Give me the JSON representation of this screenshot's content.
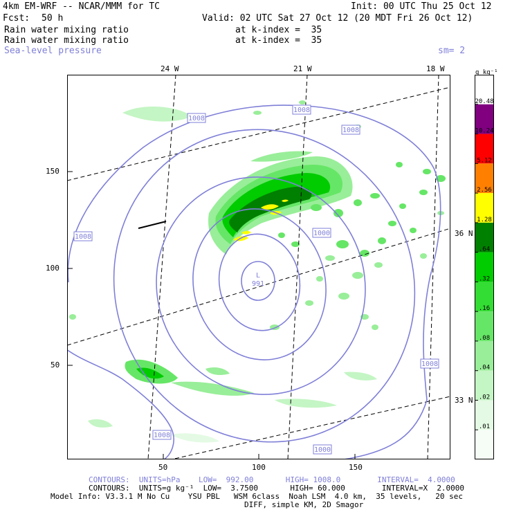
{
  "header": {
    "model": "4km EM-WRF -- NCAR/MMM for TC",
    "init": "Init: 00 UTC Thu 25 Oct 12",
    "fcst_label": "Fcst:",
    "fcst_value": "50 h",
    "valid": "Valid: 02 UTC Sat 27 Oct 12 (20 MDT Fri 26 Oct 12)",
    "fields": [
      {
        "name": "Rain water mixing ratio",
        "level": "at k-index =  35"
      },
      {
        "name": "Rain water mixing ratio",
        "level": "at k-index =  35"
      }
    ],
    "overlay_field": "Sea-level pressure",
    "smoothing": "sm= 2"
  },
  "map": {
    "top_lon_labels": [
      "24 W",
      "21 W",
      "18 W"
    ],
    "right_lat_labels": [
      "36 N",
      "33 N"
    ],
    "left_ticks": [
      "150",
      "100",
      "50"
    ],
    "bottom_ticks": [
      "50",
      "100",
      "150"
    ],
    "contour_labels": [
      "1008",
      "1008",
      "1008",
      "1008",
      "1008",
      "1008",
      "1000"
    ],
    "low_center": {
      "symbol": "L",
      "value": "991"
    },
    "colors": {
      "contour": "#7f7fd8",
      "frame": "#000000"
    }
  },
  "colorbar": {
    "unit": "g kg⁻¹",
    "levels": [
      "20.48",
      "10.24",
      "5.12",
      "2.56",
      "1.28",
      ".64",
      ".32",
      ".16",
      ".08",
      ".04",
      ".02",
      ".01"
    ],
    "colors": [
      "#ffffff",
      "#800080",
      "#ff0000",
      "#ff8000",
      "#ffff00",
      "#008000",
      "#00cc00",
      "#33dd33",
      "#66e666",
      "#99ee99",
      "#c4f5c4",
      "#e4fae4",
      "#f6fdf6"
    ]
  },
  "footer": {
    "contours_slp": "CONTOURS:  UNITS=hPa    LOW=  992.00       HIGH= 1008.0        INTERVAL=  4.0000",
    "contours_rain": "CONTOURS:  UNITS=g kg⁻¹  LOW=  3.7500       HIGH= 60.000        INTERVAL=X  2.0000",
    "model_info": "Model Info: V3.3.1 M No Cu    YSU PBL   WSM 6class  Noah LSM  4.0 km,  35 levels,   20 sec",
    "diff": "DIFF, simple KM, 2D Smagor"
  }
}
